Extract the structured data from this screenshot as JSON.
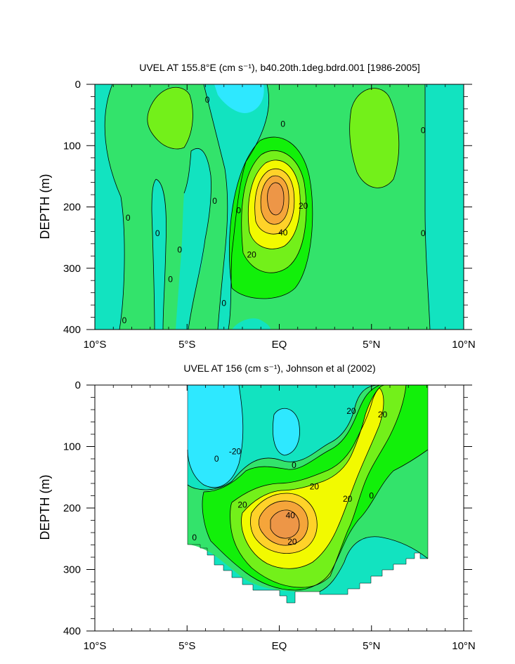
{
  "chart_data": [
    {
      "type": "heatmap",
      "title": "UVEL AT 155.8°E (cm s⁻¹), b40.20th.1deg.bdrd.001 [1986-2005]",
      "ylabel": "DEPTH (m)",
      "xlim": [
        -10,
        10
      ],
      "ylim": [
        400,
        0
      ],
      "x_ticks": [
        -10,
        -5,
        0,
        5,
        10
      ],
      "x_tick_labels": [
        "10°S",
        "5°S",
        "EQ",
        "5°N",
        "10°N"
      ],
      "y_ticks": [
        0,
        100,
        200,
        300,
        400
      ],
      "y_tick_labels": [
        "0",
        "100",
        "200",
        "300",
        "400"
      ],
      "contour_labels": [
        {
          "text": "0",
          "x": -3.9,
          "y": 25
        },
        {
          "text": "0",
          "x": 0.2,
          "y": 65
        },
        {
          "text": "0",
          "x": 7.8,
          "y": 75
        },
        {
          "text": "0",
          "x": -8.2,
          "y": 218
        },
        {
          "text": "0",
          "x": -6.6,
          "y": 243
        },
        {
          "text": "0",
          "x": -5.4,
          "y": 270
        },
        {
          "text": "0",
          "x": -3.5,
          "y": 190
        },
        {
          "text": "0",
          "x": -2.2,
          "y": 206
        },
        {
          "text": "0",
          "x": -5.9,
          "y": 318
        },
        {
          "text": "0",
          "x": -3.0,
          "y": 357
        },
        {
          "text": "0",
          "x": -8.4,
          "y": 385
        },
        {
          "text": "0",
          "x": 7.8,
          "y": 243
        },
        {
          "text": "20",
          "x": 1.3,
          "y": 198
        },
        {
          "text": "20",
          "x": -1.5,
          "y": 278
        },
        {
          "text": "40",
          "x": 0.2,
          "y": 242
        }
      ],
      "colors": {
        "lt_neg": "#2ee8ff",
        "neg": "#12e3c0",
        "zero_pos": "#33e36b",
        "pos10": "#12f00a",
        "pos20": "#73f01a",
        "pos30": "#f2fa00",
        "pos40": "#ffd229",
        "pos50": "#f5a53a",
        "pos60": "#ed9647"
      }
    },
    {
      "type": "heatmap",
      "title": "UVEL AT 156 (cm s⁻¹), Johnson et al (2002)",
      "ylabel": "DEPTH (m)",
      "xlim": [
        -10,
        10
      ],
      "ylim": [
        400,
        0
      ],
      "data_x_extent": [
        -5,
        8
      ],
      "x_ticks": [
        -10,
        -5,
        0,
        5,
        10
      ],
      "x_tick_labels": [
        "10°S",
        "5°S",
        "EQ",
        "5°N",
        "10°N"
      ],
      "y_ticks": [
        0,
        100,
        200,
        300,
        400
      ],
      "y_tick_labels": [
        "0",
        "100",
        "200",
        "300",
        "400"
      ],
      "contour_labels": [
        {
          "text": "-20",
          "x": -2.4,
          "y": 108
        },
        {
          "text": "0",
          "x": -3.4,
          "y": 120
        },
        {
          "text": "0",
          "x": 0.8,
          "y": 130
        },
        {
          "text": "20",
          "x": 1.9,
          "y": 165
        },
        {
          "text": "20",
          "x": -2.0,
          "y": 195
        },
        {
          "text": "40",
          "x": 0.6,
          "y": 212
        },
        {
          "text": "20",
          "x": 0.7,
          "y": 255
        },
        {
          "text": "20",
          "x": 3.7,
          "y": 185
        },
        {
          "text": "0",
          "x": 5.0,
          "y": 180
        },
        {
          "text": "0",
          "x": -4.6,
          "y": 248
        },
        {
          "text": "20",
          "x": 3.9,
          "y": 42
        },
        {
          "text": "20",
          "x": 5.6,
          "y": 48
        }
      ]
    }
  ]
}
